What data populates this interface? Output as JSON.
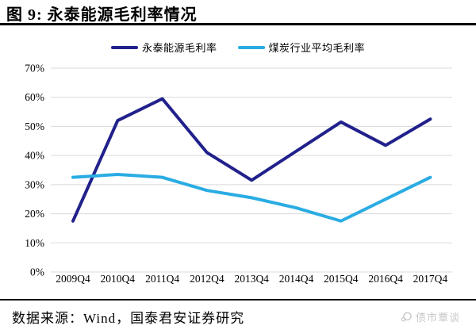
{
  "header": {
    "title": "图 9: 永泰能源毛利率情况"
  },
  "legend": [
    {
      "label": "永泰能源毛利率",
      "color": "#21218C"
    },
    {
      "label": "煤炭行业平均毛利率",
      "color": "#2AACE3"
    }
  ],
  "chart_data": {
    "type": "line",
    "title": "图 9: 永泰能源毛利率情况",
    "categories": [
      "2009Q4",
      "2010Q4",
      "2011Q4",
      "2012Q4",
      "2013Q4",
      "2014Q4",
      "2015Q4",
      "2016Q4",
      "2017Q4"
    ],
    "series": [
      {
        "name": "永泰能源毛利率",
        "color": "#21218C",
        "values": [
          17.5,
          52,
          59.5,
          41,
          31.5,
          41.5,
          51.5,
          43.5,
          52.5
        ]
      },
      {
        "name": "煤炭行业平均毛利率",
        "color": "#2AACE3",
        "values": [
          32.5,
          33.5,
          32.5,
          28,
          25.5,
          22,
          17.5,
          25,
          32.5
        ]
      }
    ],
    "xlabel": "",
    "ylabel": "",
    "ylim": [
      0,
      70
    ],
    "y_ticks": [
      {
        "value": 70,
        "label": "70%"
      },
      {
        "value": 60,
        "label": "60%"
      },
      {
        "value": 50,
        "label": "50%"
      },
      {
        "value": 40,
        "label": "40%"
      },
      {
        "value": 30,
        "label": "30%"
      },
      {
        "value": 20,
        "label": "20%"
      },
      {
        "value": 10,
        "label": "10%"
      },
      {
        "value": 0,
        "label": "0%"
      }
    ],
    "grid": true,
    "gridline_color": "#D9D9D9",
    "legend_position": "top"
  },
  "footer": {
    "source": "数据来源：Wind，国泰君安证券研究",
    "watermark": "债市覃谈"
  }
}
